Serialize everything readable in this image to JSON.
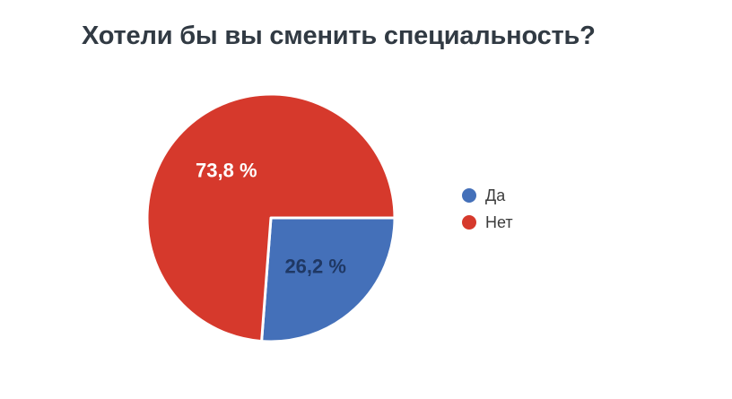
{
  "title": {
    "text": "Хотели бы вы сменить специальность?"
  },
  "chart_data": {
    "type": "pie",
    "title": "Хотели бы вы сменить специальность?",
    "categories": [
      "Да",
      "Нет"
    ],
    "values": [
      26.2,
      73.8
    ],
    "value_labels": [
      "26,2 %",
      "73,8 %"
    ],
    "colors": [
      "#4470b9",
      "#d6392c"
    ],
    "value_label_colors": [
      "#1f3864",
      "#ffffff"
    ],
    "unit": "%",
    "start_angle_deg": 0,
    "direction": "clockwise",
    "legend_position": "right",
    "background": "#ffffff"
  }
}
